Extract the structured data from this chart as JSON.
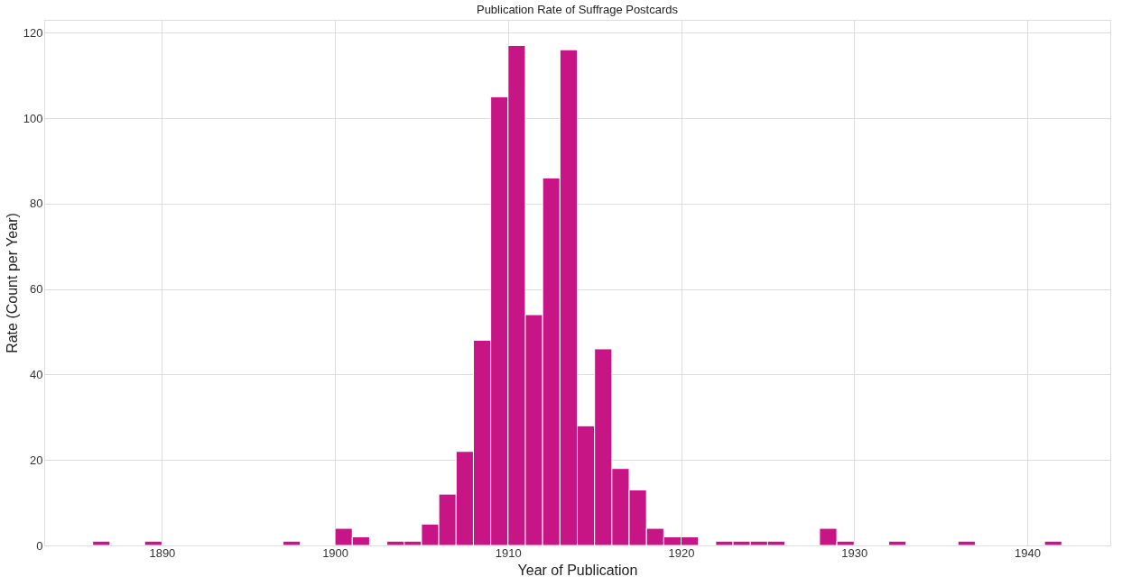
{
  "chart_data": {
    "type": "histogram",
    "title": "Publication Rate of Suffrage Postcards",
    "xlabel": "Year of Publication",
    "ylabel": "Rate (Count per Year)",
    "color": "#c71585",
    "bins": [
      1886,
      1887,
      1888,
      1889,
      1890,
      1891,
      1892,
      1893,
      1894,
      1895,
      1896,
      1897,
      1898,
      1899,
      1900,
      1901,
      1902,
      1903,
      1904,
      1905,
      1906,
      1907,
      1908,
      1909,
      1910,
      1911,
      1912,
      1913,
      1914,
      1915,
      1916,
      1917,
      1918,
      1919,
      1920,
      1921,
      1922,
      1923,
      1924,
      1925,
      1926,
      1927,
      1928,
      1929,
      1930,
      1931,
      1932,
      1933,
      1934,
      1935,
      1936,
      1937,
      1938,
      1939,
      1940,
      1941,
      1942
    ],
    "values": [
      1,
      0,
      0,
      1,
      0,
      0,
      0,
      0,
      0,
      0,
      0,
      1,
      0,
      0,
      4,
      2,
      0,
      1,
      1,
      5,
      12,
      22,
      48,
      105,
      117,
      54,
      86,
      116,
      28,
      46,
      18,
      13,
      4,
      2,
      2,
      0,
      1,
      1,
      1,
      1,
      0,
      0,
      4,
      1,
      0,
      0,
      1,
      0,
      0,
      0,
      1,
      0,
      0,
      0,
      0,
      1
    ],
    "xlim": [
      1883.2,
      1944.8
    ],
    "xticks": [
      1890,
      1900,
      1910,
      1920,
      1930,
      1940
    ],
    "ylim": [
      0,
      123
    ],
    "yticks": [
      0,
      20,
      40,
      60,
      80,
      100,
      120
    ],
    "grid": true
  }
}
